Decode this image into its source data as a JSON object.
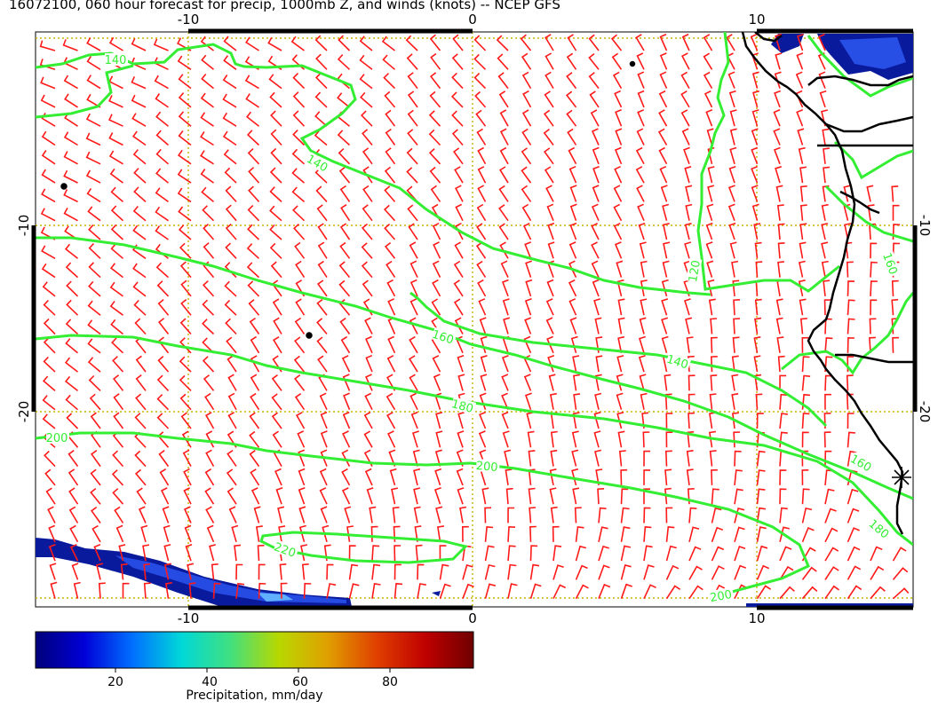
{
  "title": "16072100, 060 hour forecast for precip, 1000mb Z, and winds (knots) -- NCEP GFS",
  "map": {
    "lon_ticks": [
      "-10",
      "0",
      "10"
    ],
    "lat_ticks": [
      "-10",
      "-20"
    ],
    "contour_labels": [
      "140",
      "140",
      "160",
      "140",
      "180",
      "200",
      "200",
      "220",
      "160",
      "180",
      "120",
      "160",
      "200"
    ],
    "colors": {
      "contour": "#33ee33",
      "barb": "#ff1a1a",
      "grid": "#c8b400",
      "coast": "#000000",
      "precip_dark": "#0a1a9c",
      "precip_mid": "#2a55ee"
    },
    "icons": [
      "wind-barb-icon",
      "station-asterisk-icon"
    ]
  },
  "colorbar": {
    "ticks": [
      "20",
      "40",
      "60",
      "80"
    ],
    "label": "Precipitation, mm/day",
    "stops": [
      "#00007a",
      "#0000d8",
      "#0070ff",
      "#00d8d8",
      "#40e080",
      "#b8d800",
      "#e0a000",
      "#e04000",
      "#c00000",
      "#700000"
    ]
  }
}
